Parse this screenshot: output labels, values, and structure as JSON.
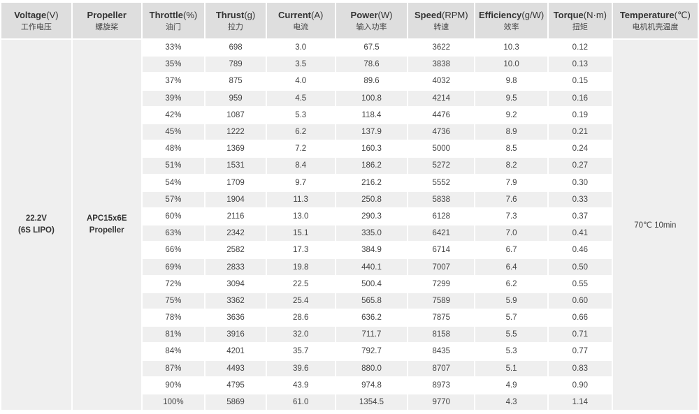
{
  "headers": [
    {
      "en": "Voltage",
      "unit": "(V)",
      "cn": "工作电压"
    },
    {
      "en": "Propeller",
      "unit": "",
      "cn": "螺旋桨"
    },
    {
      "en": "Throttle",
      "unit": "(%)",
      "cn": "油门"
    },
    {
      "en": "Thrust",
      "unit": "(g)",
      "cn": "拉力"
    },
    {
      "en": "Current",
      "unit": "(A)",
      "cn": "电流"
    },
    {
      "en": "Power",
      "unit": "(W)",
      "cn": "输入功率"
    },
    {
      "en": "Speed",
      "unit": "(RPM)",
      "cn": "转速"
    },
    {
      "en": "Efficiency",
      "unit": "(g/W)",
      "cn": "效率"
    },
    {
      "en": "Torque",
      "unit": "(N·m)",
      "cn": "扭矩"
    },
    {
      "en": "Temperature",
      "unit": "(℃)",
      "cn": "电机机壳温度"
    }
  ],
  "voltage": {
    "line1": "22.2V",
    "line2": "(6S LIPO)"
  },
  "propeller": {
    "line1": "APC15x6E",
    "line2": "Propeller"
  },
  "temperature": {
    "value": "70℃  10min"
  },
  "rows": [
    {
      "throttle": "33%",
      "thrust": "698",
      "current": "3.0",
      "power": "67.5",
      "speed": "3622",
      "efficiency": "10.3",
      "torque": "0.12"
    },
    {
      "throttle": "35%",
      "thrust": "789",
      "current": "3.5",
      "power": "78.6",
      "speed": "3838",
      "efficiency": "10.0",
      "torque": "0.13"
    },
    {
      "throttle": "37%",
      "thrust": "875",
      "current": "4.0",
      "power": "89.6",
      "speed": "4032",
      "efficiency": "9.8",
      "torque": "0.15"
    },
    {
      "throttle": "39%",
      "thrust": "959",
      "current": "4.5",
      "power": "100.8",
      "speed": "4214",
      "efficiency": "9.5",
      "torque": "0.16"
    },
    {
      "throttle": "42%",
      "thrust": "1087",
      "current": "5.3",
      "power": "118.4",
      "speed": "4476",
      "efficiency": "9.2",
      "torque": "0.19"
    },
    {
      "throttle": "45%",
      "thrust": "1222",
      "current": "6.2",
      "power": "137.9",
      "speed": "4736",
      "efficiency": "8.9",
      "torque": "0.21"
    },
    {
      "throttle": "48%",
      "thrust": "1369",
      "current": "7.2",
      "power": "160.3",
      "speed": "5000",
      "efficiency": "8.5",
      "torque": "0.24"
    },
    {
      "throttle": "51%",
      "thrust": "1531",
      "current": "8.4",
      "power": "186.2",
      "speed": "5272",
      "efficiency": "8.2",
      "torque": "0.27"
    },
    {
      "throttle": "54%",
      "thrust": "1709",
      "current": "9.7",
      "power": "216.2",
      "speed": "5552",
      "efficiency": "7.9",
      "torque": "0.30"
    },
    {
      "throttle": "57%",
      "thrust": "1904",
      "current": "11.3",
      "power": "250.8",
      "speed": "5838",
      "efficiency": "7.6",
      "torque": "0.33"
    },
    {
      "throttle": "60%",
      "thrust": "2116",
      "current": "13.0",
      "power": "290.3",
      "speed": "6128",
      "efficiency": "7.3",
      "torque": "0.37"
    },
    {
      "throttle": "63%",
      "thrust": "2342",
      "current": "15.1",
      "power": "335.0",
      "speed": "6421",
      "efficiency": "7.0",
      "torque": "0.41"
    },
    {
      "throttle": "66%",
      "thrust": "2582",
      "current": "17.3",
      "power": "384.9",
      "speed": "6714",
      "efficiency": "6.7",
      "torque": "0.46"
    },
    {
      "throttle": "69%",
      "thrust": "2833",
      "current": "19.8",
      "power": "440.1",
      "speed": "7007",
      "efficiency": "6.4",
      "torque": "0.50"
    },
    {
      "throttle": "72%",
      "thrust": "3094",
      "current": "22.5",
      "power": "500.4",
      "speed": "7299",
      "efficiency": "6.2",
      "torque": "0.55"
    },
    {
      "throttle": "75%",
      "thrust": "3362",
      "current": "25.4",
      "power": "565.8",
      "speed": "7589",
      "efficiency": "5.9",
      "torque": "0.60"
    },
    {
      "throttle": "78%",
      "thrust": "3636",
      "current": "28.6",
      "power": "636.2",
      "speed": "7875",
      "efficiency": "5.7",
      "torque": "0.66"
    },
    {
      "throttle": "81%",
      "thrust": "3916",
      "current": "32.0",
      "power": "711.7",
      "speed": "8158",
      "efficiency": "5.5",
      "torque": "0.71"
    },
    {
      "throttle": "84%",
      "thrust": "4201",
      "current": "35.7",
      "power": "792.7",
      "speed": "8435",
      "efficiency": "5.3",
      "torque": "0.77"
    },
    {
      "throttle": "87%",
      "thrust": "4493",
      "current": "39.6",
      "power": "880.0",
      "speed": "8707",
      "efficiency": "5.1",
      "torque": "0.83"
    },
    {
      "throttle": "90%",
      "thrust": "4795",
      "current": "43.9",
      "power": "974.8",
      "speed": "8973",
      "efficiency": "4.9",
      "torque": "0.90"
    },
    {
      "throttle": "100%",
      "thrust": "5869",
      "current": "61.0",
      "power": "1354.5",
      "speed": "9770",
      "efficiency": "4.3",
      "torque": "1.14"
    }
  ]
}
